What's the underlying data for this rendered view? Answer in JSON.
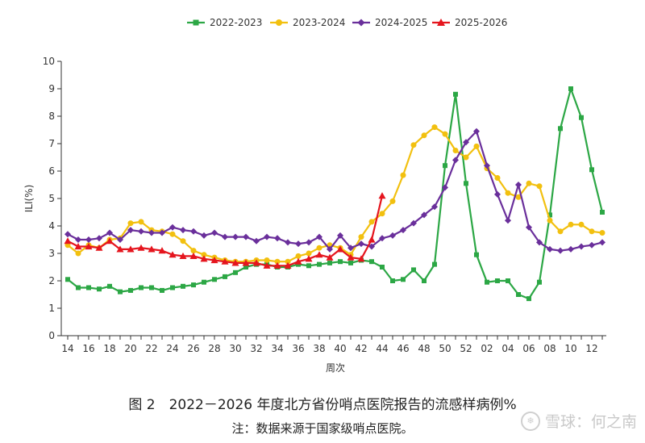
{
  "chart_data": {
    "type": "line",
    "title": "",
    "xlabel": "周次",
    "ylabel": "ILI(%)",
    "ylim": [
      0,
      10
    ],
    "yticks": [
      0,
      1,
      2,
      3,
      4,
      5,
      6,
      7,
      8,
      9,
      10
    ],
    "week_sequence": [
      14,
      15,
      16,
      17,
      18,
      19,
      20,
      21,
      22,
      23,
      24,
      25,
      26,
      27,
      28,
      29,
      30,
      31,
      32,
      33,
      34,
      35,
      36,
      37,
      38,
      39,
      40,
      41,
      42,
      43,
      44,
      45,
      46,
      47,
      48,
      49,
      50,
      51,
      52,
      1,
      2,
      3,
      4,
      5,
      6,
      7,
      8,
      9,
      10,
      11,
      12,
      13
    ],
    "x_tick_labels": [
      "14",
      "16",
      "18",
      "20",
      "22",
      "24",
      "26",
      "28",
      "30",
      "32",
      "34",
      "36",
      "38",
      "40",
      "42",
      "44",
      "46",
      "48",
      "50",
      "52",
      "02",
      "04",
      "06",
      "08",
      "10",
      "12"
    ],
    "legend_position": "top-center",
    "series": [
      {
        "name": "2022-2023",
        "color": "#2ca745",
        "marker": "square",
        "values": [
          2.05,
          1.75,
          1.75,
          1.7,
          1.8,
          1.6,
          1.65,
          1.75,
          1.75,
          1.65,
          1.75,
          1.8,
          1.85,
          1.95,
          2.05,
          2.15,
          2.3,
          2.5,
          2.6,
          2.6,
          2.5,
          2.5,
          2.6,
          2.55,
          2.6,
          2.65,
          2.7,
          2.65,
          2.75,
          2.7,
          2.5,
          2.0,
          2.05,
          2.4,
          2.0,
          2.6,
          6.2,
          8.8,
          5.55,
          2.95,
          1.95,
          2.0,
          2.0,
          1.5,
          1.35,
          1.95,
          4.4,
          7.55,
          9.0,
          7.95,
          6.05,
          4.5
        ]
      },
      {
        "name": "2023-2024",
        "color": "#f2c00f",
        "marker": "circle",
        "values": [
          3.3,
          3.0,
          3.3,
          3.2,
          3.5,
          3.55,
          4.1,
          4.15,
          3.85,
          3.8,
          3.7,
          3.45,
          3.1,
          2.95,
          2.85,
          2.75,
          2.7,
          2.7,
          2.75,
          2.75,
          2.7,
          2.7,
          2.9,
          3.0,
          3.2,
          3.3,
          3.2,
          2.95,
          3.6,
          4.15,
          4.45,
          4.9,
          5.85,
          6.95,
          7.3,
          7.6,
          7.35,
          6.75,
          6.5,
          6.9,
          6.1,
          5.75,
          5.2,
          5.05,
          5.55,
          5.45,
          4.2,
          3.8,
          4.05,
          4.05,
          3.8,
          3.75
        ]
      },
      {
        "name": "2024-2025",
        "color": "#6a2f9b",
        "marker": "diamond",
        "values": [
          3.7,
          3.5,
          3.5,
          3.55,
          3.75,
          3.5,
          3.85,
          3.8,
          3.75,
          3.75,
          3.95,
          3.85,
          3.8,
          3.65,
          3.75,
          3.6,
          3.6,
          3.6,
          3.45,
          3.6,
          3.55,
          3.4,
          3.35,
          3.4,
          3.6,
          3.15,
          3.65,
          3.2,
          3.35,
          3.25,
          3.55,
          3.65,
          3.85,
          4.1,
          4.4,
          4.7,
          5.4,
          6.4,
          7.05,
          7.45,
          6.2,
          5.15,
          4.2,
          5.5,
          3.95,
          3.4,
          3.15,
          3.1,
          3.15,
          3.25,
          3.3,
          3.4
        ]
      },
      {
        "name": "2025-2026",
        "color": "#e5151e",
        "marker": "triangle",
        "values": [
          3.45,
          3.25,
          3.25,
          3.2,
          3.45,
          3.15,
          3.15,
          3.2,
          3.15,
          3.1,
          2.95,
          2.9,
          2.9,
          2.8,
          2.75,
          2.7,
          2.65,
          2.65,
          2.65,
          2.55,
          2.55,
          2.55,
          2.7,
          2.8,
          2.95,
          2.85,
          3.15,
          2.85,
          2.8,
          3.5,
          5.1
        ]
      }
    ]
  },
  "caption": {
    "title": "图 2　2022－2026 年度北方省份哨点医院报告的流感样病例%",
    "note": "注：数据来源于国家级哨点医院。"
  },
  "watermark": {
    "icon": "snowball-icon",
    "text": "雪球：何之南"
  }
}
